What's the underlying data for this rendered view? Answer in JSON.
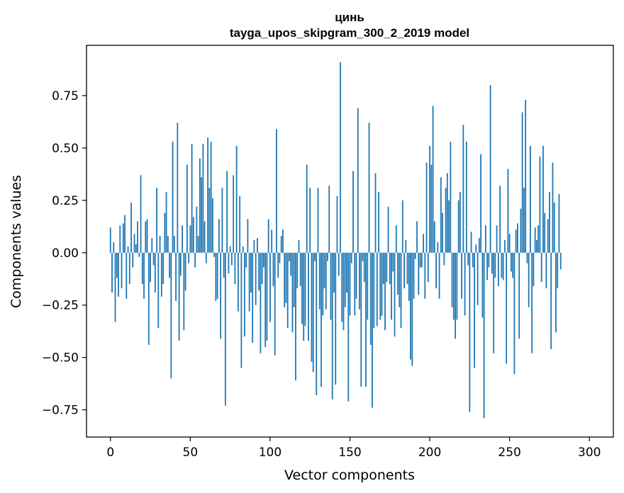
{
  "chart_data": {
    "type": "bar",
    "title_line1": "цинь",
    "title_line2": "tayga_upos_skipgram_300_2_2019 model",
    "xlabel": "Vector components",
    "ylabel": "Components values",
    "xlim": [
      -15,
      315
    ],
    "ylim": [
      -0.88,
      0.99
    ],
    "xticks": [
      0,
      50,
      100,
      150,
      200,
      250,
      300
    ],
    "xtick_labels": [
      "0",
      "50",
      "100",
      "150",
      "200",
      "250",
      "300"
    ],
    "yticks": [
      -0.75,
      -0.5,
      -0.25,
      0.0,
      0.25,
      0.5,
      0.75
    ],
    "ytick_labels": [
      "−0.75",
      "−0.50",
      "−0.25",
      "0.00",
      "0.25",
      "0.50",
      "0.75"
    ],
    "bar_color": "#1f77b4",
    "grid": false,
    "values": [
      0.12,
      -0.19,
      0.05,
      -0.33,
      -0.12,
      -0.21,
      0.13,
      -0.17,
      0.14,
      0.18,
      -0.22,
      0.03,
      -0.15,
      0.24,
      -0.07,
      0.09,
      0.04,
      0.15,
      -0.02,
      0.37,
      -0.15,
      -0.22,
      0.15,
      0.16,
      -0.44,
      -0.14,
      0.07,
      -0.06,
      -0.19,
      0.31,
      -0.36,
      0.08,
      -0.21,
      -0.15,
      0.19,
      0.29,
      0.08,
      -0.12,
      -0.6,
      0.53,
      0.08,
      -0.23,
      0.62,
      -0.42,
      -0.11,
      0.13,
      -0.37,
      -0.18,
      0.42,
      -0.05,
      0.13,
      0.52,
      0.17,
      -0.07,
      0.22,
      0.08,
      0.45,
      0.36,
      0.52,
      0.15,
      -0.05,
      0.55,
      0.31,
      0.53,
      0.26,
      -0.02,
      -0.23,
      -0.22,
      0.16,
      -0.41,
      0.31,
      -0.12,
      -0.73,
      0.39,
      -0.1,
      0.03,
      -0.06,
      0.37,
      -0.15,
      0.51,
      -0.28,
      0.27,
      -0.55,
      0.03,
      -0.4,
      -0.07,
      0.16,
      -0.28,
      -0.19,
      -0.43,
      0.06,
      -0.25,
      0.07,
      -0.18,
      -0.48,
      -0.15,
      -0.07,
      -0.45,
      -0.42,
      0.16,
      -0.33,
      0.11,
      -0.16,
      -0.49,
      0.59,
      -0.12,
      -0.05,
      0.08,
      0.11,
      -0.26,
      -0.24,
      -0.36,
      -0.04,
      -0.11,
      -0.38,
      -0.26,
      -0.61,
      -0.17,
      0.06,
      -0.16,
      -0.34,
      -0.42,
      -0.35,
      0.42,
      -0.42,
      0.31,
      -0.52,
      -0.57,
      -0.04,
      -0.68,
      0.31,
      -0.27,
      -0.64,
      -0.3,
      -0.17,
      -0.27,
      -0.04,
      0.32,
      -0.32,
      -0.7,
      -0.19,
      -0.63,
      0.27,
      -0.11,
      0.91,
      -0.33,
      -0.37,
      -0.26,
      -0.19,
      -0.71,
      -0.3,
      -0.05,
      0.39,
      -0.3,
      -0.22,
      0.69,
      -0.27,
      -0.64,
      -0.04,
      -0.14,
      -0.64,
      -0.32,
      0.62,
      -0.44,
      -0.74,
      -0.36,
      0.38,
      -0.35,
      0.29,
      -0.32,
      -0.3,
      -0.15,
      -0.37,
      -0.14,
      0.22,
      -0.15,
      -0.32,
      -0.09,
      -0.4,
      0.13,
      -0.2,
      -0.26,
      -0.36,
      0.25,
      -0.17,
      0.06,
      -0.15,
      -0.23,
      -0.51,
      -0.54,
      -0.22,
      -0.03,
      0.15,
      -0.2,
      -0.07,
      -0.07,
      0.09,
      -0.22,
      0.43,
      -0.14,
      0.51,
      0.42,
      0.7,
      0.15,
      -0.17,
      0.05,
      -0.22,
      0.36,
      0.19,
      -0.06,
      0.31,
      0.38,
      0.25,
      0.53,
      -0.26,
      -0.32,
      -0.41,
      -0.32,
      0.25,
      0.29,
      -0.22,
      0.61,
      -0.3,
      0.53,
      -0.06,
      -0.76,
      0.1,
      -0.07,
      -0.55,
      0.04,
      -0.25,
      0.07,
      0.47,
      -0.31,
      -0.79,
      0.13,
      -0.13,
      -0.07,
      0.8,
      -0.1,
      -0.48,
      -0.12,
      0.13,
      -0.16,
      0.32,
      -0.12,
      -0.13,
      0.06,
      -0.53,
      0.4,
      0.09,
      -0.09,
      -0.12,
      -0.58,
      0.11,
      0.14,
      -0.41,
      0.21,
      0.67,
      0.31,
      0.73,
      -0.05,
      -0.26,
      0.51,
      -0.48,
      -0.16,
      0.12,
      0.06,
      0.13,
      0.46,
      -0.14,
      0.51,
      0.19,
      -0.17,
      0.16,
      0.29,
      -0.46,
      0.43,
      0.24,
      -0.38,
      -0.17,
      0.28,
      -0.08
    ]
  }
}
